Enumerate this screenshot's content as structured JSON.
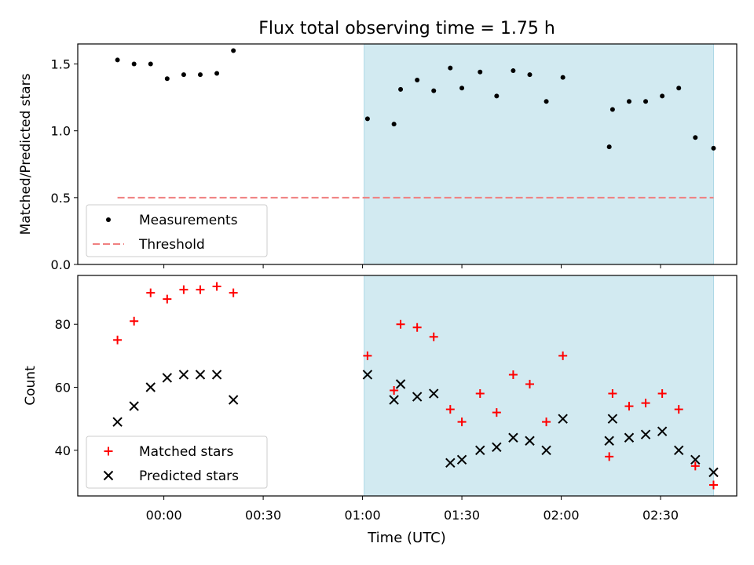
{
  "chart_data": [
    {
      "type": "scatter",
      "title": "Flux total observing time = 1.75 h",
      "xlabel": "",
      "ylabel": "Matched/Predicted stars",
      "ylim": [
        0.0,
        1.65
      ],
      "yticks": [
        0.0,
        0.5,
        1.0,
        1.5
      ],
      "yticklabels": [
        "0.0",
        "0.5",
        "1.0",
        "1.5"
      ],
      "xlim_minutes": [
        -26,
        173
      ],
      "shaded_span_minutes": [
        60.5,
        166
      ],
      "shaded_color": "#add8e6",
      "series": [
        {
          "name": "Measurements",
          "marker": "dot",
          "color": "#000000",
          "x_minutes": [
            -14,
            -9,
            -4,
            1,
            6,
            11,
            16,
            21,
            61.5,
            69.5,
            71.5,
            76.5,
            81.5,
            86.5,
            90,
            95.5,
            100.5,
            105.5,
            110.5,
            115.5,
            120.5,
            134.5,
            135.5,
            140.5,
            145.5,
            150.5,
            155.5,
            160.5,
            166
          ],
          "values": [
            1.53,
            1.5,
            1.5,
            1.39,
            1.42,
            1.42,
            1.43,
            1.6,
            1.09,
            1.05,
            1.31,
            1.38,
            1.3,
            1.47,
            1.32,
            1.44,
            1.26,
            1.45,
            1.42,
            1.22,
            1.4,
            0.88,
            1.16,
            1.22,
            1.22,
            1.26,
            1.32,
            0.95,
            0.87
          ]
        },
        {
          "name": "Threshold",
          "line_style": "dashed",
          "color": "#f08080",
          "x_minutes": [
            -14,
            166
          ],
          "values": [
            0.5,
            0.5
          ]
        }
      ],
      "legend": {
        "location": "lower-left",
        "entries": [
          "Measurements",
          "Threshold"
        ]
      }
    },
    {
      "type": "scatter",
      "title": "",
      "xlabel": "Time (UTC)",
      "ylabel": "Count",
      "ylim": [
        25.5,
        95.5
      ],
      "yticks": [
        40,
        60,
        80
      ],
      "yticklabels": [
        "40",
        "60",
        "80"
      ],
      "xlim_minutes": [
        -26,
        173
      ],
      "xticks_minutes": [
        0,
        30,
        60,
        90,
        120,
        150
      ],
      "xticklabels": [
        "00:00",
        "00:30",
        "01:00",
        "01:30",
        "02:00",
        "02:30"
      ],
      "shaded_span_minutes": [
        60.5,
        166
      ],
      "shaded_color": "#add8e6",
      "series": [
        {
          "name": "Matched stars",
          "marker": "plus",
          "color": "#ff0000",
          "x_minutes": [
            -14,
            -9,
            -4,
            1,
            6,
            11,
            16,
            21,
            61.5,
            69.5,
            71.5,
            76.5,
            81.5,
            86.5,
            90,
            95.5,
            100.5,
            105.5,
            110.5,
            115.5,
            120.5,
            134.5,
            135.5,
            140.5,
            145.5,
            150.5,
            155.5,
            160.5,
            166
          ],
          "values": [
            75,
            81,
            90,
            88,
            91,
            91,
            92,
            90,
            70,
            59,
            80,
            79,
            76,
            53,
            49,
            58,
            52,
            64,
            61,
            49,
            70,
            38,
            58,
            54,
            55,
            58,
            53,
            35,
            29
          ]
        },
        {
          "name": "Predicted stars",
          "marker": "x",
          "color": "#000000",
          "x_minutes": [
            -14,
            -9,
            -4,
            1,
            6,
            11,
            16,
            21,
            61.5,
            69.5,
            71.5,
            76.5,
            81.5,
            86.5,
            90,
            95.5,
            100.5,
            105.5,
            110.5,
            115.5,
            120.5,
            134.5,
            135.5,
            140.5,
            145.5,
            150.5,
            155.5,
            160.5,
            166
          ],
          "values": [
            49,
            54,
            60,
            63,
            64,
            64,
            64,
            56,
            64,
            56,
            61,
            57,
            58,
            36,
            37,
            40,
            41,
            44,
            43,
            40,
            50,
            43,
            50,
            44,
            45,
            46,
            40,
            37,
            33
          ]
        }
      ],
      "legend": {
        "location": "lower-left",
        "entries": [
          "Matched stars",
          "Predicted stars"
        ]
      }
    }
  ]
}
